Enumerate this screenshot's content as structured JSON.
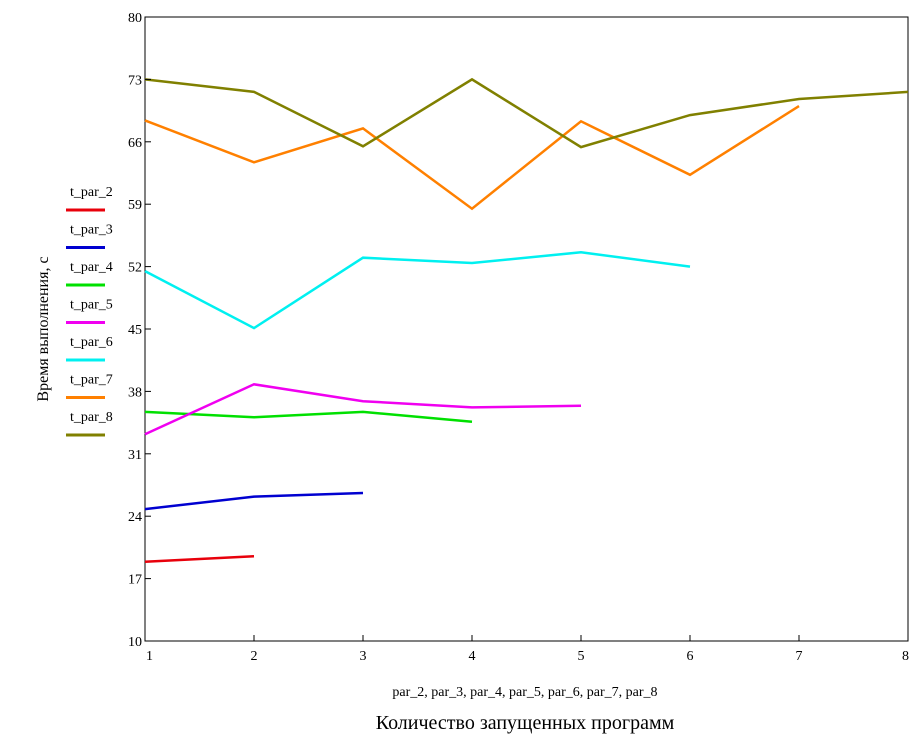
{
  "chart_data": {
    "type": "line",
    "xlabel": "par_2, par_3, par_4, par_5, par_6, par_7, par_8",
    "xtitle": "Количество запущенных программ",
    "ylabel": "Время выполнения, с",
    "xlim": [
      1,
      8
    ],
    "ylim": [
      10,
      80
    ],
    "xticks": [
      "1",
      "2",
      "3",
      "4",
      "5",
      "6",
      "7",
      "8"
    ],
    "yticks": [
      "10",
      "17",
      "24",
      "31",
      "38",
      "45",
      "52",
      "59",
      "66",
      "73",
      "80"
    ],
    "grid": false,
    "legend": "left",
    "series": [
      {
        "name": "t_par_2",
        "color": "#e8000b",
        "x": [
          1,
          2
        ],
        "y": [
          18.9,
          19.5
        ]
      },
      {
        "name": "t_par_3",
        "color": "#0000d0",
        "x": [
          1,
          2,
          3
        ],
        "y": [
          24.8,
          26.2,
          26.6
        ]
      },
      {
        "name": "t_par_4",
        "color": "#00e000",
        "x": [
          1,
          2,
          3,
          4
        ],
        "y": [
          35.7,
          35.1,
          35.7,
          34.6
        ]
      },
      {
        "name": "t_par_5",
        "color": "#f000f0",
        "x": [
          1,
          2,
          3,
          4,
          5
        ],
        "y": [
          33.2,
          38.8,
          36.9,
          36.2,
          36.4
        ]
      },
      {
        "name": "t_par_6",
        "color": "#00f0f0",
        "x": [
          1,
          2,
          3,
          4,
          5,
          6
        ],
        "y": [
          51.5,
          45.1,
          53.0,
          52.4,
          53.6,
          52.0
        ]
      },
      {
        "name": "t_par_7",
        "color": "#ff8000",
        "x": [
          1,
          2,
          3,
          4,
          5,
          6,
          7
        ],
        "y": [
          68.4,
          63.7,
          67.5,
          58.5,
          68.3,
          62.3,
          70.0
        ]
      },
      {
        "name": "t_par_8",
        "color": "#808000",
        "x": [
          1,
          2,
          3,
          4,
          5,
          6,
          7,
          8
        ],
        "y": [
          73.0,
          71.6,
          65.5,
          73.0,
          65.4,
          69.0,
          70.8,
          71.6
        ]
      }
    ]
  }
}
